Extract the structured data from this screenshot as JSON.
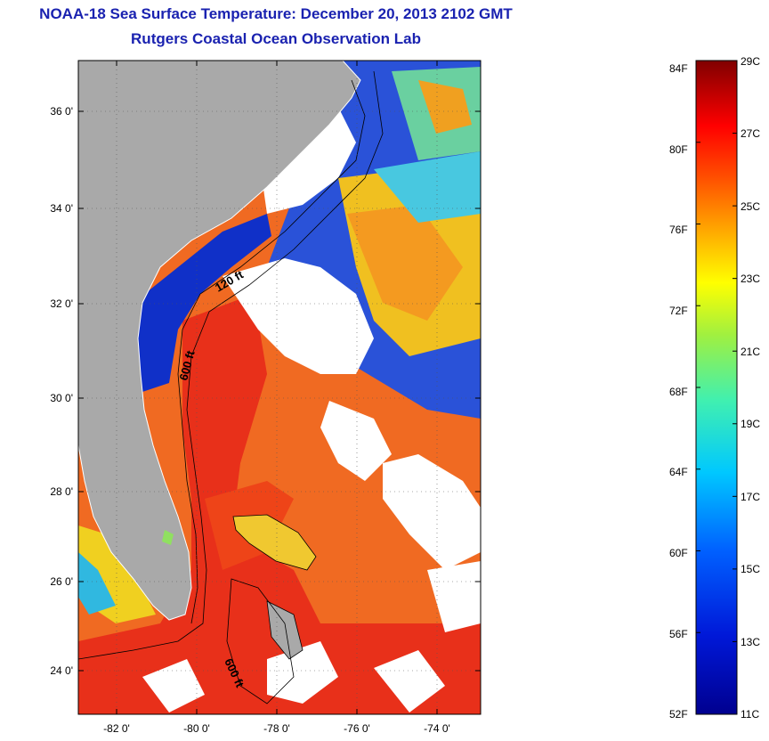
{
  "header": {
    "title": "NOAA-18 Sea Surface Temperature:  December 20, 2013 2102 GMT",
    "subtitle": "Rutgers Coastal Ocean Observation Lab"
  },
  "map": {
    "lat_ticks": [
      "36 0'",
      "34 0'",
      "32 0'",
      "30 0'",
      "28 0'",
      "26 0'",
      "24 0'"
    ],
    "lon_ticks": [
      "-82 0'",
      "-80 0'",
      "-78 0'",
      "-76 0'",
      "-74 0'"
    ],
    "contour_labels": [
      "120 ft",
      "600 ft",
      "600 ft"
    ],
    "colors": {
      "land": "#a9a9a9",
      "cloud": "#ffffff",
      "cold": "#1030c8",
      "cool": "#30c8e0",
      "mild": "#e8e020",
      "warm": "#f08020",
      "hot": "#e83018"
    }
  },
  "colorbar": {
    "fahrenheit": [
      "84F",
      "80F",
      "76F",
      "72F",
      "68F",
      "64F",
      "60F",
      "56F",
      "52F"
    ],
    "celsius": [
      "29C",
      "27C",
      "25C",
      "23C",
      "21C",
      "19C",
      "17C",
      "15C",
      "13C",
      "11C"
    ],
    "min_c": 11,
    "max_c": 29,
    "min_f": 52,
    "max_f": 84
  }
}
